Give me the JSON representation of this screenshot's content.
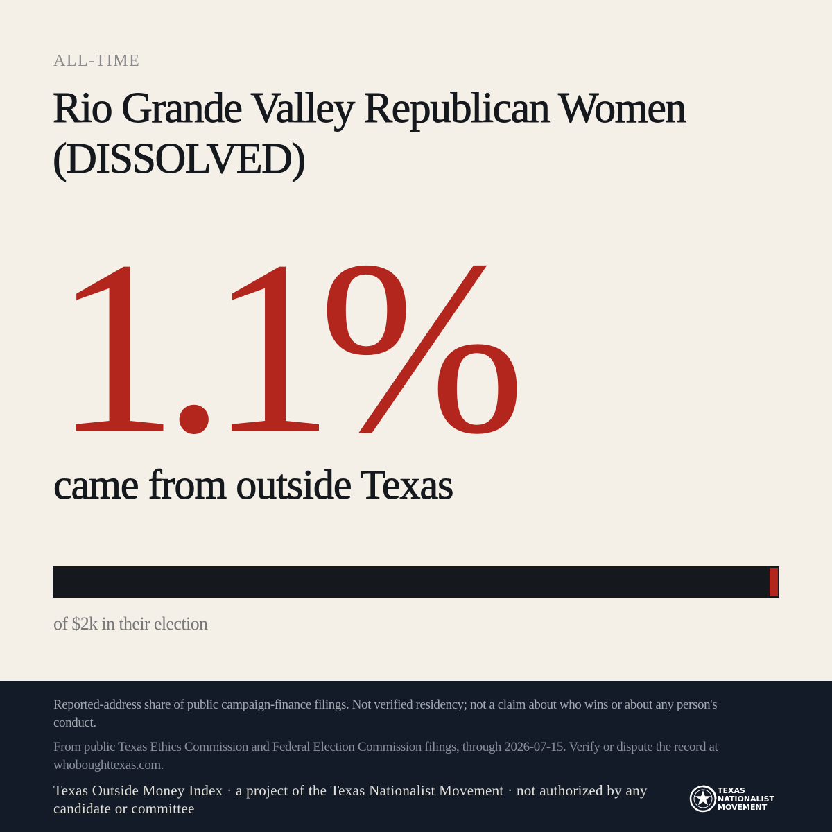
{
  "header": {
    "period": "ALL-TIME",
    "title": "Rio Grande Valley Republican Women (DISSOLVED)"
  },
  "stat": {
    "value": "1.1%",
    "caption": "came from outside Texas",
    "outside_share_percent": 1.1
  },
  "bar_subnote": "of $2k in their election",
  "footer": {
    "disclaimer": "Reported-address share of public campaign-finance filings. Not verified residency; not a claim about who wins or about any person's conduct.",
    "source": "From public Texas Ethics Commission and Federal Election Commission filings, through 2026-07-15. Verify or dispute the record at whoboughttexas.com.",
    "project": "Texas Outside Money Index · a project of the Texas Nationalist Movement · not authorized by any candidate or committee",
    "logo": {
      "line1": "TEXAS",
      "line2": "NATIONALIST",
      "line3": "MOVEMENT",
      "icon": "lone-star-seal-icon"
    }
  },
  "colors": {
    "background": "#f4f0e8",
    "accent": "#b3261e",
    "ink": "#15181d",
    "footer": "#121b27"
  }
}
